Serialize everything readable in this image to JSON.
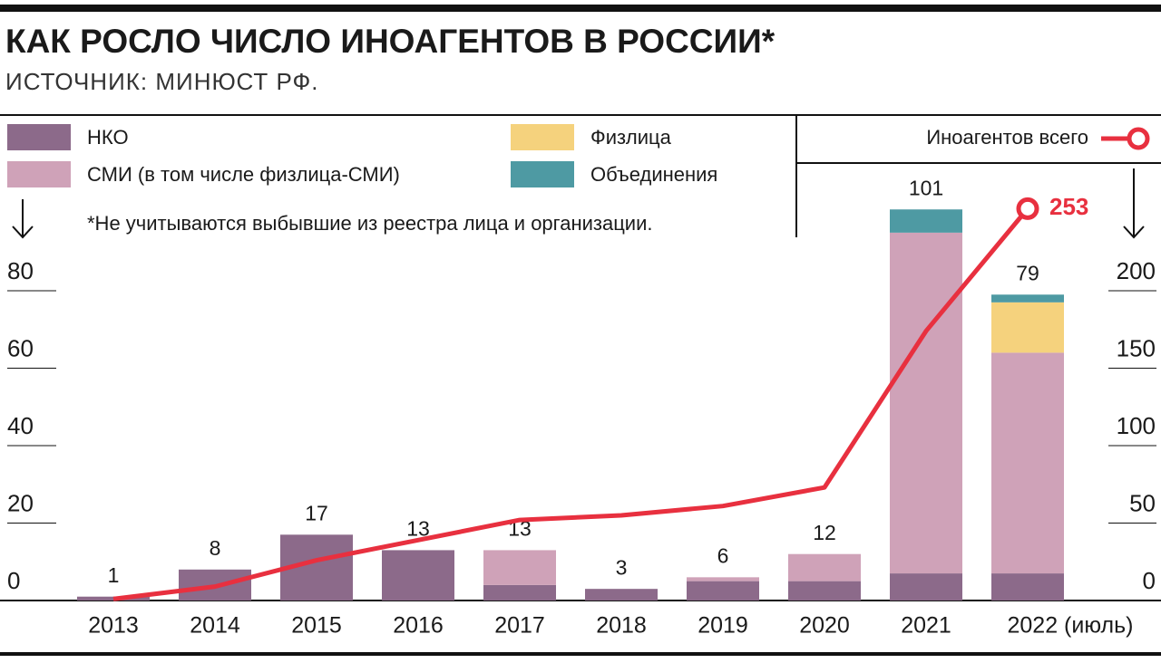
{
  "chart_data": {
    "type": "bar",
    "stacked": true,
    "title": "КАК РОСЛО ЧИСЛО ИНОАГЕНТОВ В РОССИИ*",
    "subtitle": "ИСТОЧНИК: МИНЮСТ РФ.",
    "note": "*Не учитываются выбывшие из реестра лица и организации.",
    "categories": [
      "2013",
      "2014",
      "2015",
      "2016",
      "2017",
      "2018",
      "2019",
      "2020",
      "2021",
      "2022 (июль)"
    ],
    "series": [
      {
        "name": "НКО",
        "color": "#8c6a8a",
        "values": [
          1,
          8,
          17,
          13,
          4,
          3,
          5,
          5,
          7,
          7
        ]
      },
      {
        "name": "СМИ (в том числе физлица-СМИ)",
        "color": "#cfa2b8",
        "values": [
          0,
          0,
          0,
          0,
          9,
          0,
          1,
          7,
          88,
          57
        ]
      },
      {
        "name": "Физлица",
        "color": "#f5d27d",
        "values": [
          0,
          0,
          0,
          0,
          0,
          0,
          0,
          0,
          0,
          13
        ]
      },
      {
        "name": "Объединения",
        "color": "#4e9aa3",
        "values": [
          0,
          0,
          0,
          0,
          0,
          0,
          0,
          0,
          6,
          2
        ]
      },
      {
        "name": "Иноагентов всего",
        "color": "#e8303f",
        "type": "line",
        "axis": "y2",
        "values": [
          1,
          9,
          26,
          39,
          52,
          55,
          61,
          73,
          174,
          253
        ]
      }
    ],
    "totals": [
      1,
      8,
      17,
      13,
      13,
      3,
      6,
      12,
      101,
      79
    ],
    "ylim": [
      0,
      100
    ],
    "yticks": [
      0,
      20,
      40,
      60,
      80
    ],
    "y2lim": [
      0,
      250
    ],
    "y2ticks": [
      0,
      50,
      100,
      150,
      200
    ]
  }
}
